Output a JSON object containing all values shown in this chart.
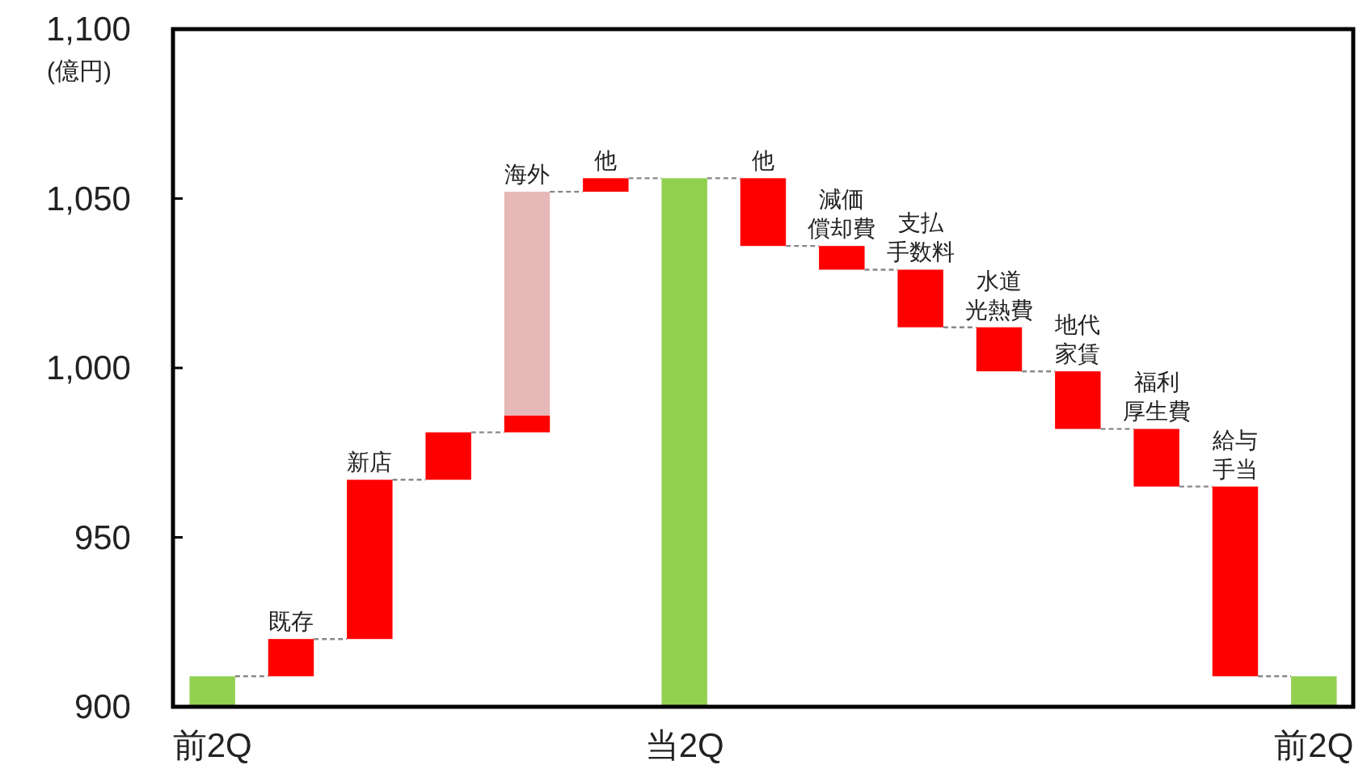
{
  "chart_data": {
    "type": "bar",
    "categories": [
      "前2Q",
      "既存",
      "新店",
      null,
      "海外",
      "他",
      "当2Q",
      "他",
      "減価償却費",
      "支払手数料",
      "水道光熱費",
      "地代家賃",
      "福利厚生費",
      "給与手当",
      "前2Q"
    ],
    "series": [
      {
        "colors": [
          "#92d050",
          "#ff0000",
          "#ff0000",
          "#ff0000",
          "#ff0000",
          "#ff0000",
          "#92d050",
          "#ff0000",
          "#ff0000",
          "#ff0000",
          "#ff0000",
          "#ff0000",
          "#ff0000",
          "#ff0000",
          "#92d050"
        ],
        "base": [
          900,
          909,
          920,
          967,
          981,
          1052,
          900,
          1056,
          1036,
          1029,
          1012,
          999,
          982,
          965,
          900
        ],
        "values": [
          9,
          11,
          47,
          14,
          5,
          4,
          156,
          -20,
          -7,
          -17,
          -13,
          -17,
          -17,
          -56,
          9
        ]
      },
      {
        "color": "#e6b8b7",
        "base": [
          null,
          null,
          null,
          null,
          986,
          null,
          null,
          null,
          null,
          null,
          null,
          null,
          null,
          null,
          null
        ],
        "values": [
          null,
          null,
          null,
          null,
          66,
          null,
          null,
          null,
          null,
          null,
          null,
          null,
          null,
          null,
          null
        ]
      }
    ],
    "ylabel": "(億円)",
    "ylim": [
      900,
      1100
    ],
    "yticks": [
      900,
      950,
      {
        "value": 1000,
        "label": "1,000"
      },
      {
        "value": 1050,
        "label": "1,050"
      },
      {
        "value": 1100,
        "label": "1,100"
      }
    ]
  }
}
